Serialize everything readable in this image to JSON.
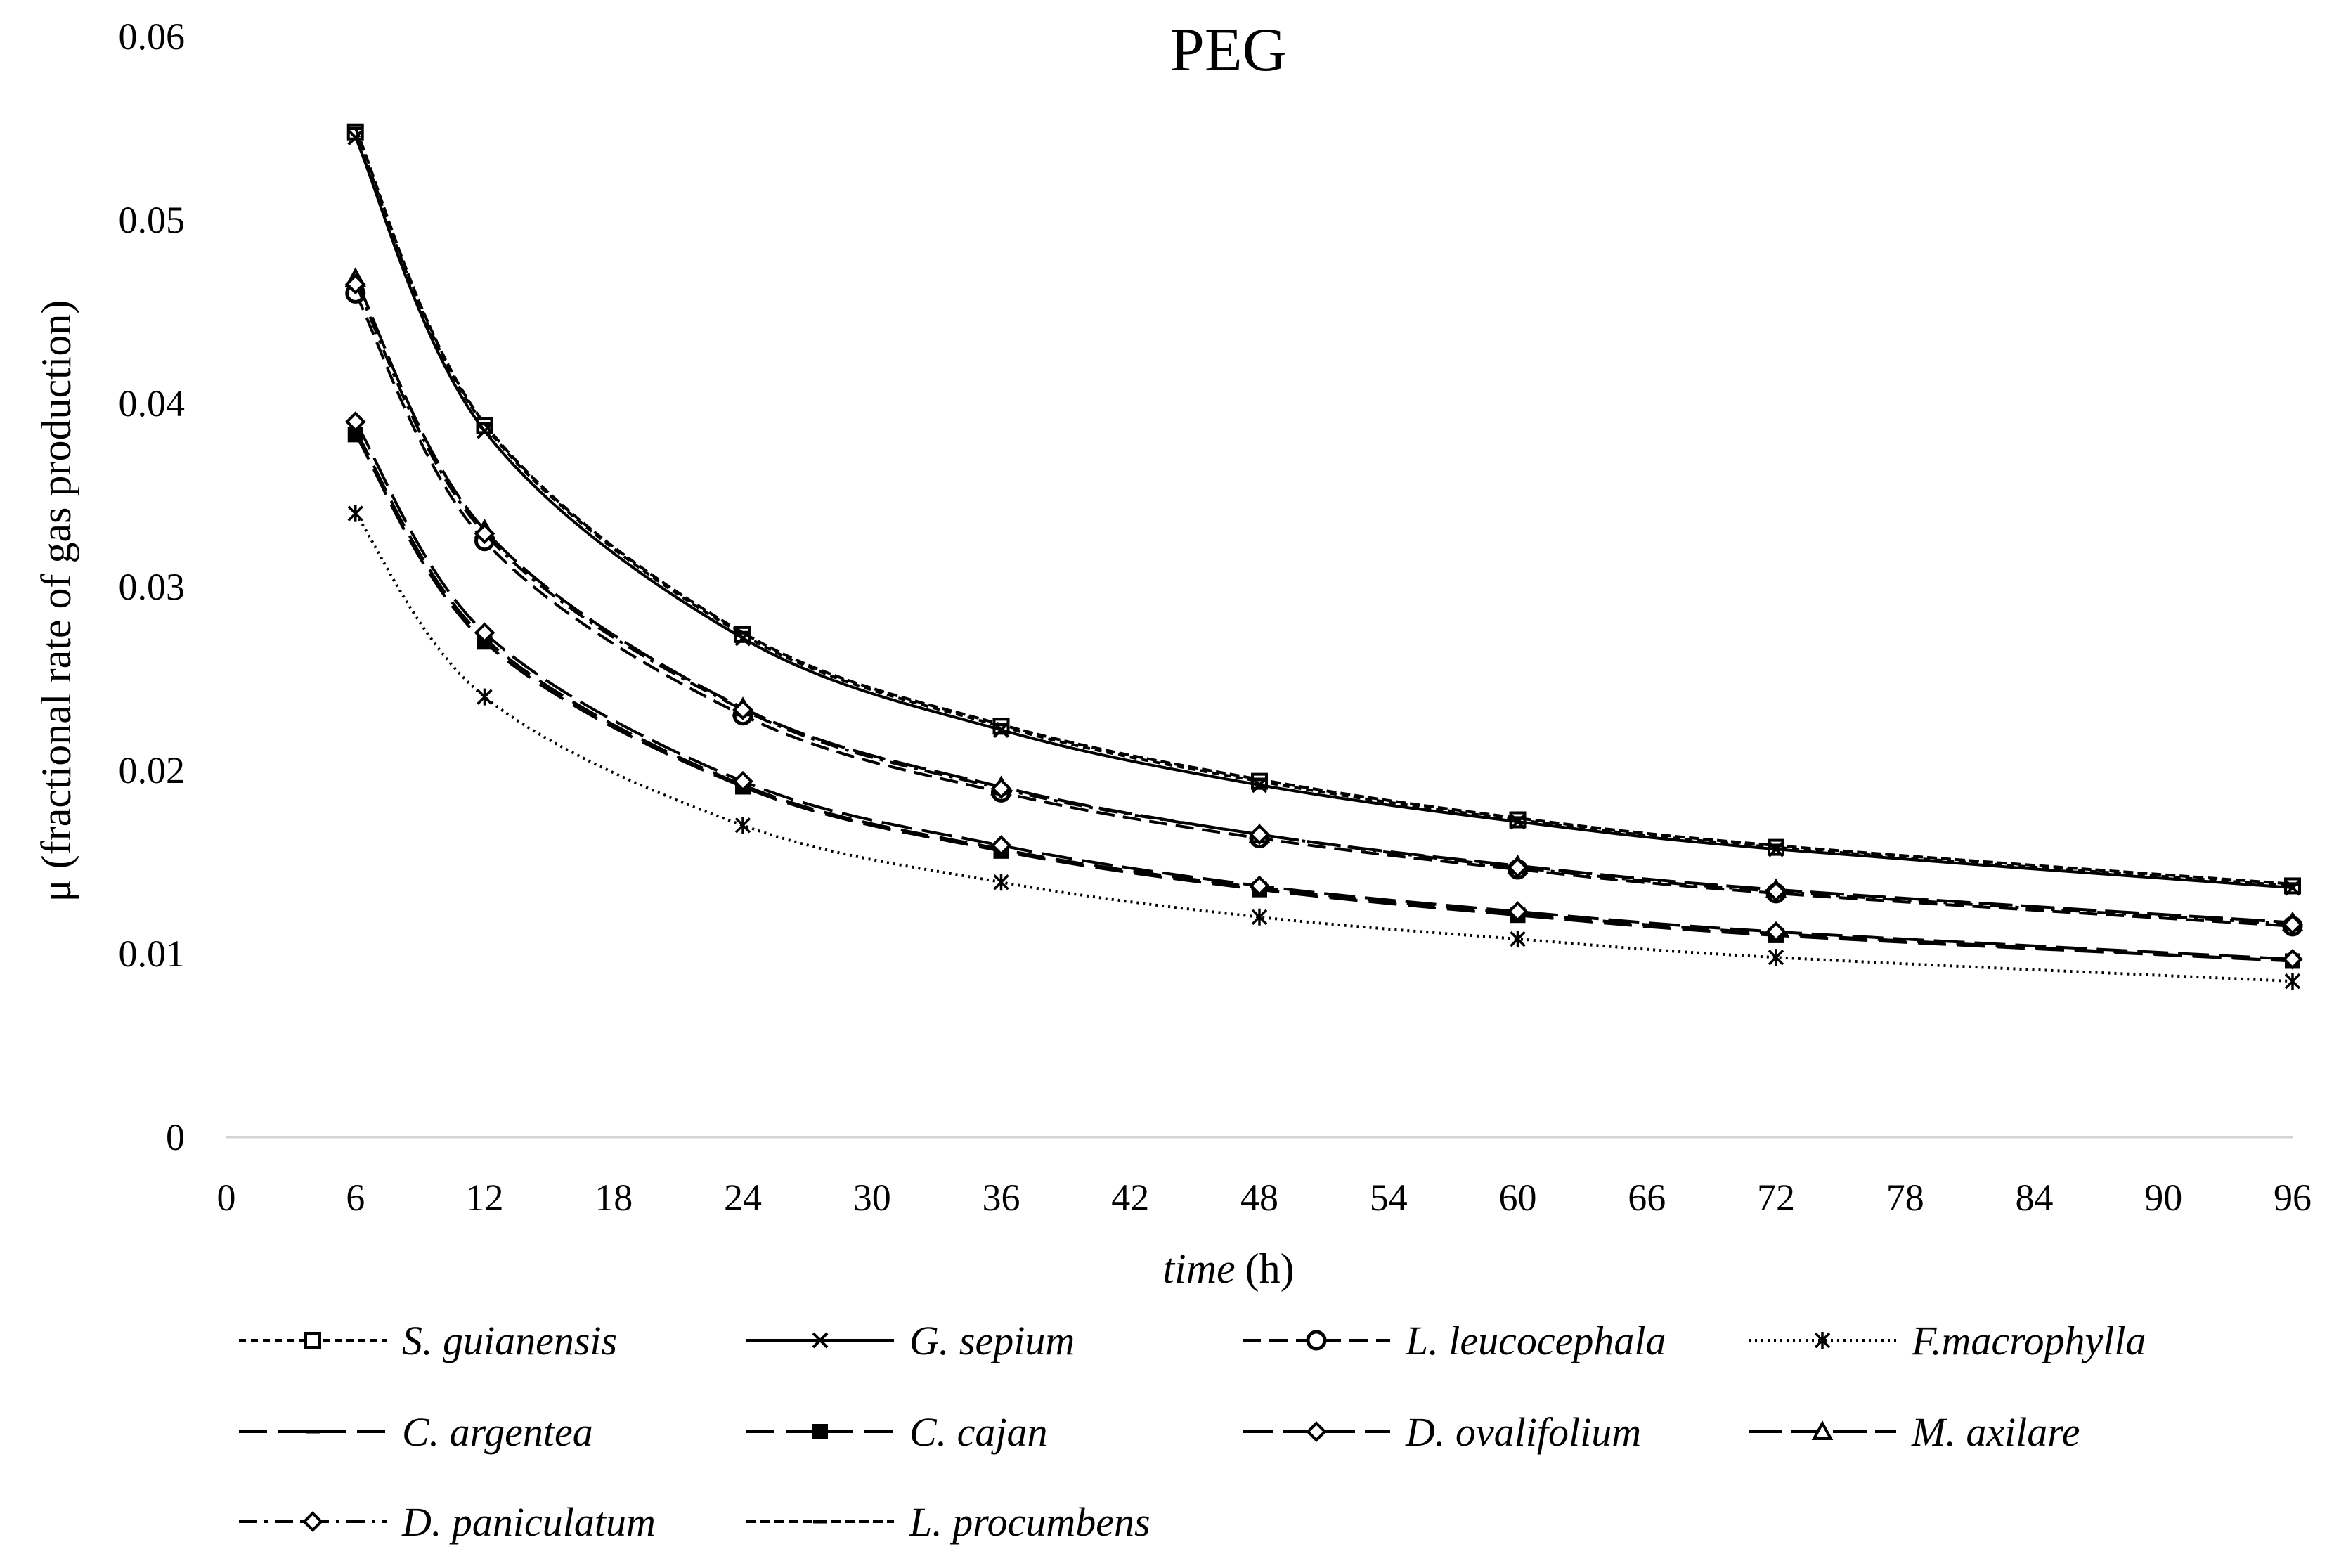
{
  "chart_data": {
    "type": "line",
    "title": "PEG",
    "xlabel_italic": "time",
    "xlabel_unit": "(h)",
    "ylabel": "μ (fractional rate of gas production)",
    "xlim": [
      0,
      96
    ],
    "ylim": [
      0,
      0.06
    ],
    "x_ticks": [
      "0",
      "6",
      "12",
      "18",
      "24",
      "30",
      "36",
      "42",
      "48",
      "54",
      "60",
      "66",
      "72",
      "78",
      "84",
      "90",
      "96"
    ],
    "y_ticks": [
      "0",
      "0.01",
      "0.02",
      "0.03",
      "0.04",
      "0.05",
      "0.06"
    ],
    "x": [
      6,
      12,
      24,
      36,
      48,
      60,
      72,
      96
    ],
    "series": [
      {
        "name": "S. guianensis",
        "dash": "10 7",
        "marker": "square-open",
        "values": [
          0.0548,
          0.0388,
          0.0274,
          0.0224,
          0.0194,
          0.0173,
          0.0158,
          0.0137
        ]
      },
      {
        "name": "G. sepium",
        "dash": "",
        "marker": "x",
        "values": [
          0.0545,
          0.0385,
          0.0272,
          0.0222,
          0.0192,
          0.0172,
          0.0157,
          0.0136
        ]
      },
      {
        "name": "L. leucocephala",
        "dash": "26 12",
        "marker": "circle-open",
        "values": [
          0.046,
          0.0325,
          0.023,
          0.0188,
          0.0163,
          0.0146,
          0.0133,
          0.0115
        ]
      },
      {
        "name": "F.macrophylla",
        "dash": "3 6",
        "marker": "asterisk",
        "values": [
          0.034,
          0.024,
          0.017,
          0.0139,
          0.012,
          0.0108,
          0.0098,
          0.0085
        ]
      },
      {
        "name": "C. argentea",
        "dash": "40 16",
        "marker": "dash",
        "values": [
          0.0385,
          0.0272,
          0.0192,
          0.0157,
          0.0136,
          0.0122,
          0.0111,
          0.0096
        ]
      },
      {
        "name": "C. cajan",
        "dash": "40 16",
        "marker": "square-filled",
        "values": [
          0.0383,
          0.027,
          0.0191,
          0.0156,
          0.0135,
          0.0121,
          0.011,
          0.0096
        ]
      },
      {
        "name": "D. ovalifolium",
        "dash": "44 14",
        "marker": "diamond-open",
        "values": [
          0.039,
          0.0275,
          0.0194,
          0.0159,
          0.0137,
          0.0123,
          0.0112,
          0.0097
        ]
      },
      {
        "name": "M. axilare",
        "dash": "48 12",
        "marker": "triangle-open",
        "values": [
          0.0468,
          0.0331,
          0.0234,
          0.0191,
          0.0165,
          0.0148,
          0.0135,
          0.0117
        ]
      },
      {
        "name": "D. paniculatum",
        "dash": "26 10 5 10",
        "marker": "diamond-open",
        "values": [
          0.0465,
          0.0329,
          0.0233,
          0.019,
          0.0165,
          0.0147,
          0.0134,
          0.0116
        ]
      },
      {
        "name": "L. procumbens",
        "dash": "14 6",
        "marker": "dash",
        "values": [
          0.055,
          0.0389,
          0.0275,
          0.0225,
          0.0195,
          0.0174,
          0.0159,
          0.0138
        ]
      }
    ]
  }
}
